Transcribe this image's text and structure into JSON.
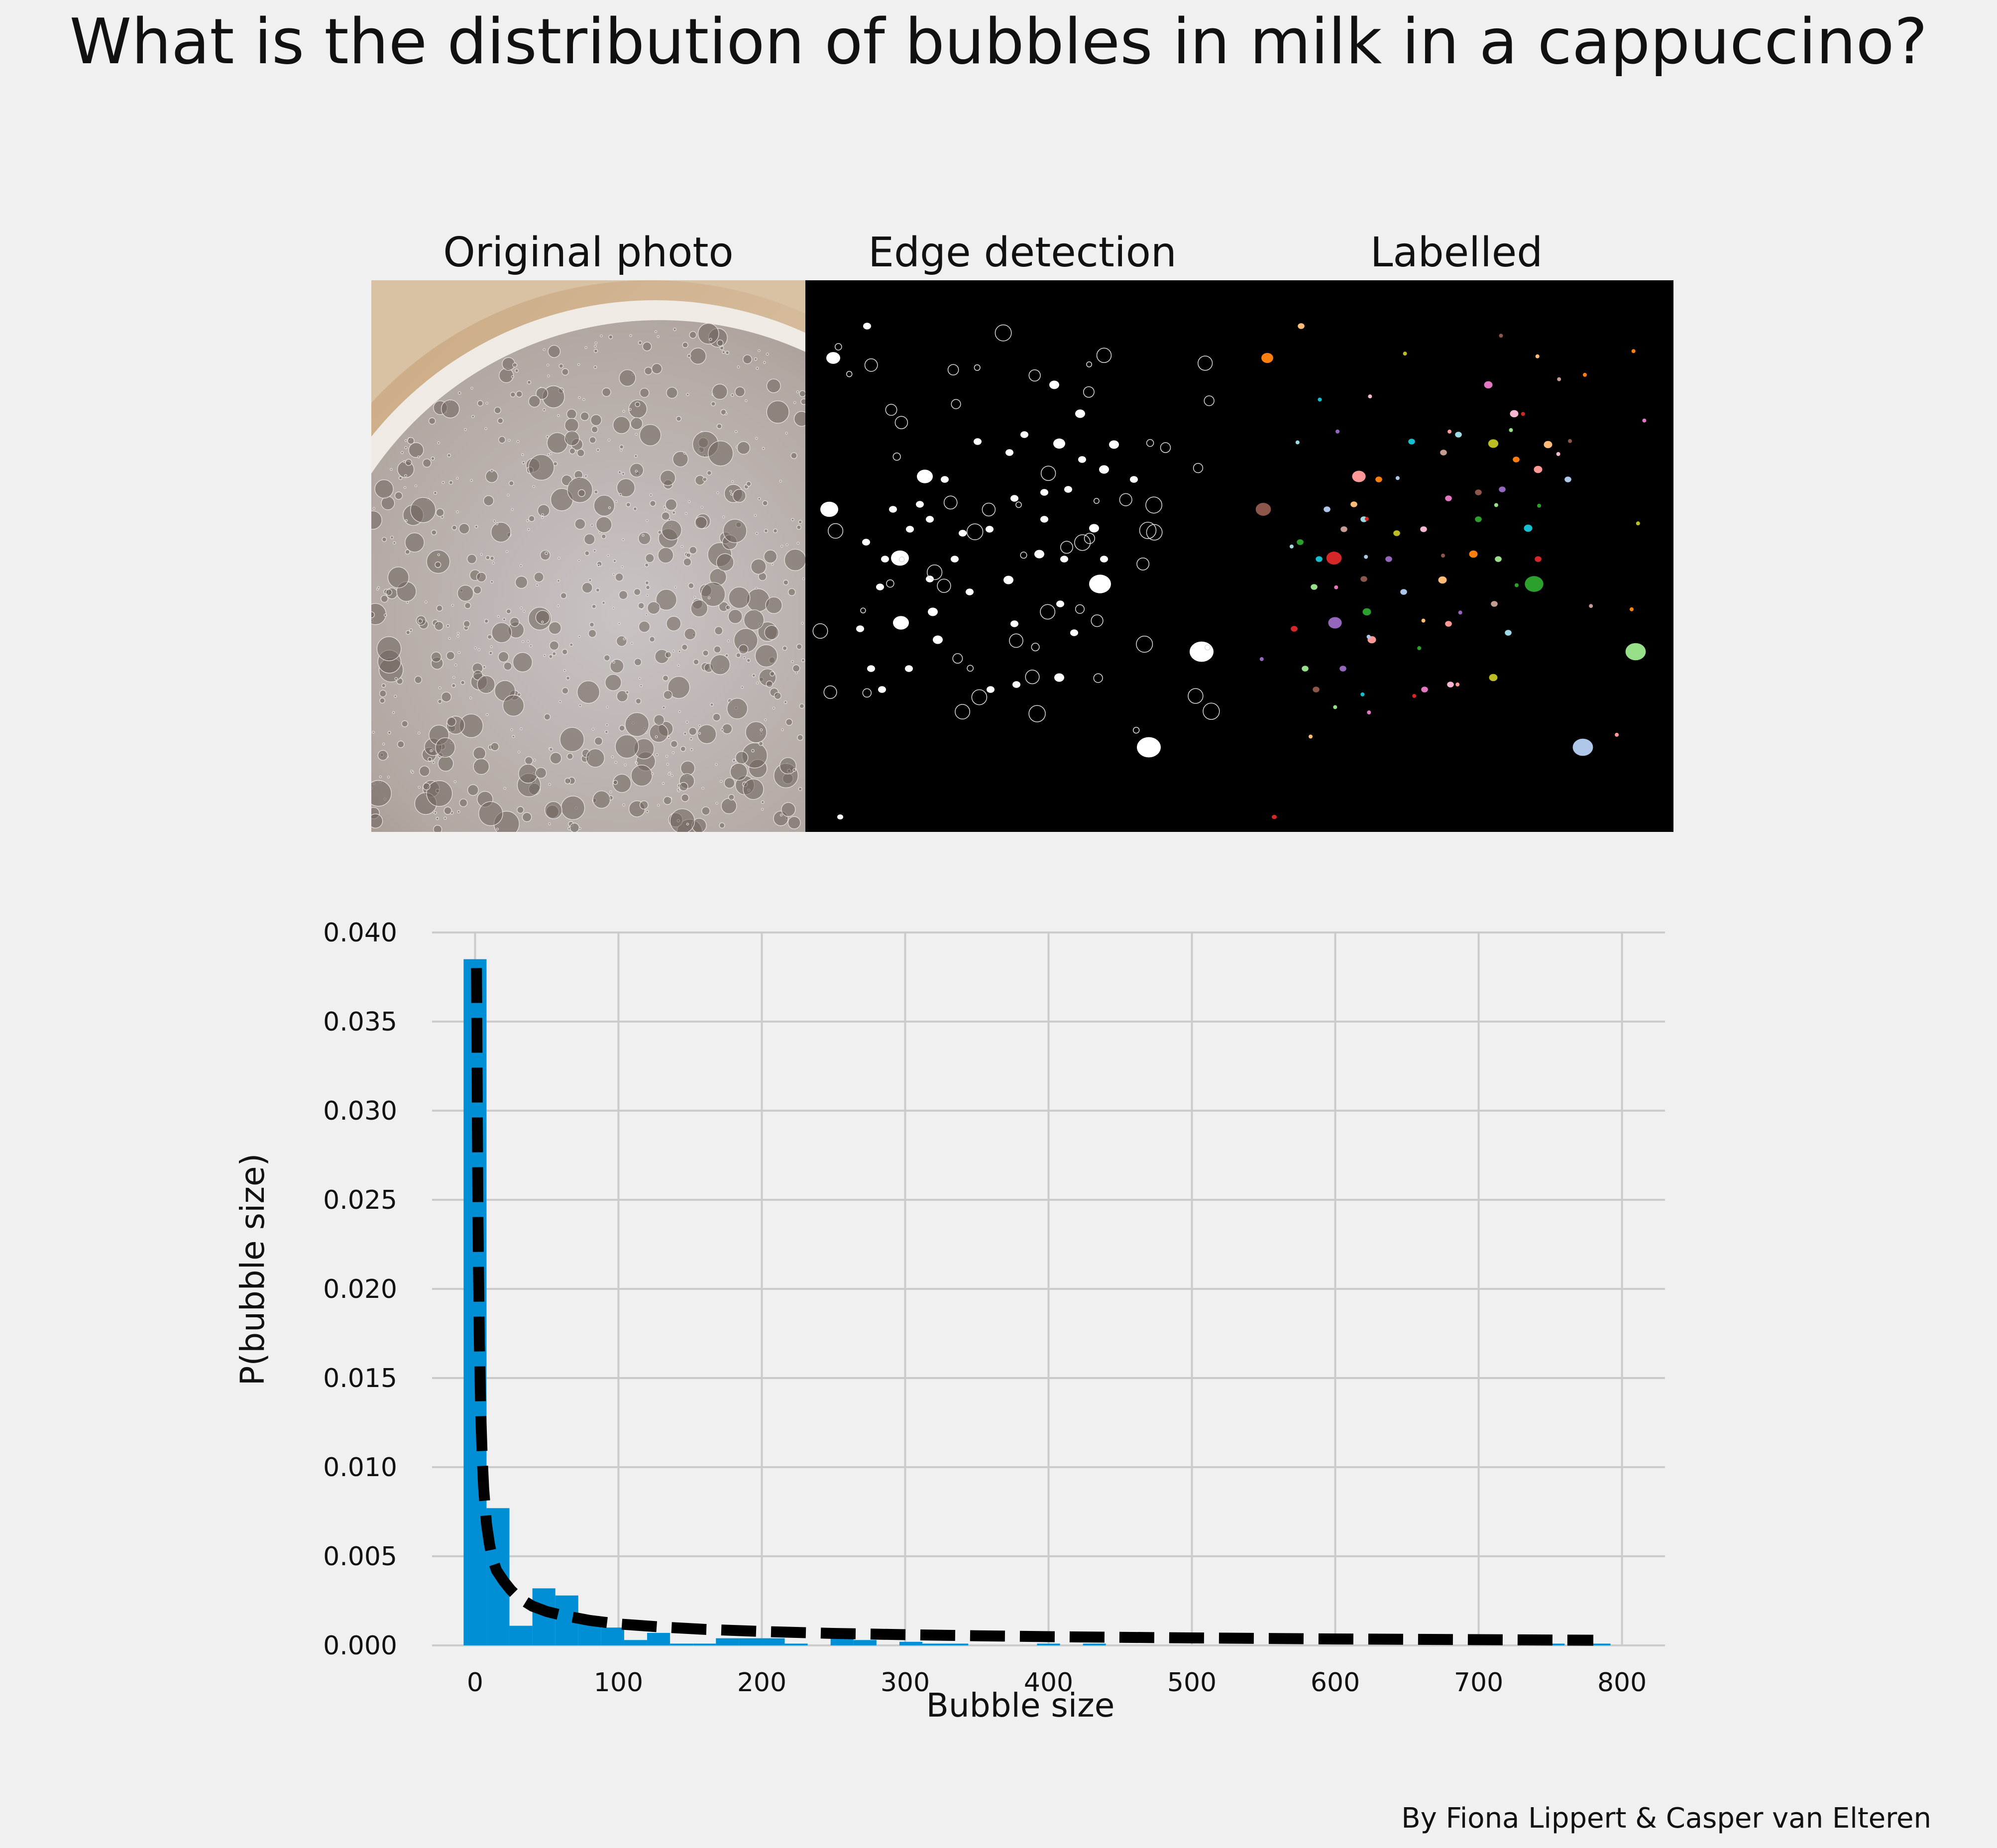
{
  "title": "What is the distribution of bubbles in milk in a cappuccino?",
  "panels": [
    {
      "title": "Original photo"
    },
    {
      "title": "Edge detection"
    },
    {
      "title": "Labelled"
    }
  ],
  "credit": "By Fiona Lippert & Casper van Elteren",
  "colors": {
    "background": "#f0f0f0",
    "bars": "#008fd5",
    "fit": "#000000",
    "grid": "#cbcbcb",
    "label_palette": [
      "#ff7f0e",
      "#ffbb78",
      "#aec7e8",
      "#2ca02c",
      "#98df8a",
      "#d62728",
      "#ff9896",
      "#9467bd",
      "#8c564b",
      "#e377c2",
      "#f7b6d2",
      "#bcbd22",
      "#9edae5",
      "#c49c94",
      "#17becf"
    ]
  },
  "chart_data": {
    "type": "bar",
    "subtype": "histogram",
    "xlabel": "Bubble size",
    "ylabel": "P(bubble size)",
    "xlim": [
      -30,
      830
    ],
    "ylim": [
      0,
      0.04
    ],
    "xticks": [
      0,
      100,
      200,
      300,
      400,
      500,
      600,
      700,
      800
    ],
    "yticks": [
      0.0,
      0.005,
      0.01,
      0.015,
      0.02,
      0.025,
      0.03,
      0.035,
      0.04
    ],
    "xtick_labels": [
      "0",
      "100",
      "200",
      "300",
      "400",
      "500",
      "600",
      "700",
      "800"
    ],
    "ytick_labels": [
      "0.000",
      "0.005",
      "0.010",
      "0.015",
      "0.020",
      "0.025",
      "0.030",
      "0.035",
      "0.040"
    ],
    "grid": true,
    "bins": [
      {
        "x0": -8,
        "x1": 8,
        "value": 0.0385
      },
      {
        "x0": 8,
        "x1": 24,
        "value": 0.0077
      },
      {
        "x0": 24,
        "x1": 40,
        "value": 0.0011
      },
      {
        "x0": 40,
        "x1": 56,
        "value": 0.0032
      },
      {
        "x0": 56,
        "x1": 72,
        "value": 0.0028
      },
      {
        "x0": 72,
        "x1": 88,
        "value": 0.0014
      },
      {
        "x0": 88,
        "x1": 104,
        "value": 0.001
      },
      {
        "x0": 104,
        "x1": 120,
        "value": 0.0003
      },
      {
        "x0": 120,
        "x1": 136,
        "value": 0.0007
      },
      {
        "x0": 136,
        "x1": 152,
        "value": 0.0001
      },
      {
        "x0": 152,
        "x1": 168,
        "value": 0.0001
      },
      {
        "x0": 168,
        "x1": 184,
        "value": 0.0004
      },
      {
        "x0": 184,
        "x1": 200,
        "value": 0.0004
      },
      {
        "x0": 200,
        "x1": 216,
        "value": 0.0004
      },
      {
        "x0": 216,
        "x1": 232,
        "value": 0.0001
      },
      {
        "x0": 248,
        "x1": 264,
        "value": 0.0004
      },
      {
        "x0": 264,
        "x1": 280,
        "value": 0.0003
      },
      {
        "x0": 296,
        "x1": 312,
        "value": 0.0002
      },
      {
        "x0": 312,
        "x1": 328,
        "value": 0.0001
      },
      {
        "x0": 328,
        "x1": 344,
        "value": 0.0001
      },
      {
        "x0": 392,
        "x1": 408,
        "value": 0.0001
      },
      {
        "x0": 424,
        "x1": 440,
        "value": 0.0001
      },
      {
        "x0": 744,
        "x1": 760,
        "value": 0.0001
      },
      {
        "x0": 776,
        "x1": 792,
        "value": 0.0001
      }
    ],
    "fit": {
      "style": "dashed",
      "points": [
        [
          1,
          0.038
        ],
        [
          2,
          0.024
        ],
        [
          3,
          0.017
        ],
        [
          4,
          0.013
        ],
        [
          5,
          0.0105
        ],
        [
          6,
          0.0088
        ],
        [
          8,
          0.0068
        ],
        [
          10,
          0.0057
        ],
        [
          12,
          0.0049
        ],
        [
          15,
          0.0042
        ],
        [
          20,
          0.0036
        ],
        [
          25,
          0.0031
        ],
        [
          30,
          0.0027
        ],
        [
          40,
          0.0022
        ],
        [
          50,
          0.0019
        ],
        [
          60,
          0.0017
        ],
        [
          80,
          0.0014
        ],
        [
          100,
          0.0012
        ],
        [
          130,
          0.00103
        ],
        [
          160,
          0.0009
        ],
        [
          200,
          0.00078
        ],
        [
          250,
          0.00067
        ],
        [
          300,
          0.0006
        ],
        [
          350,
          0.00054
        ],
        [
          400,
          0.00049
        ],
        [
          500,
          0.00042
        ],
        [
          600,
          0.00036
        ],
        [
          700,
          0.00032
        ],
        [
          780,
          0.00029
        ]
      ]
    }
  }
}
